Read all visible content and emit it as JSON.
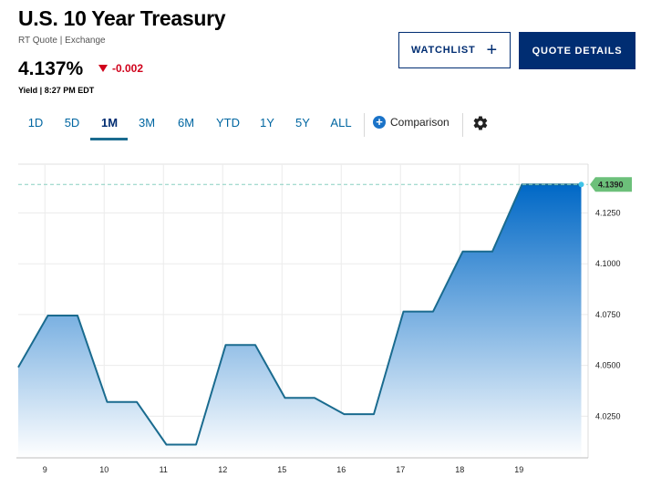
{
  "header": {
    "title": "U.S. 10 Year Treasury",
    "subtitle": "RT Quote | Exchange",
    "price": "4.137%",
    "change": "-0.002",
    "timestamp": "Yield | 8:27 PM EDT"
  },
  "buttons": {
    "watchlist": "WATCHLIST",
    "quote_details": "QUOTE DETAILS"
  },
  "tabs": [
    "1D",
    "5D",
    "1M",
    "3M",
    "6M",
    "YTD",
    "1Y",
    "5Y",
    "ALL"
  ],
  "active_tab": "1M",
  "comparison_label": "Comparison",
  "colors": {
    "brand_navy": "#002d72",
    "tab_blue": "#0066a1",
    "down_red": "#d0021b",
    "line": "#1a6b8f",
    "current_flag": "#6cc07a"
  },
  "chart_data": {
    "type": "area",
    "x_labels": [
      "9",
      "10",
      "11",
      "12",
      "15",
      "16",
      "17",
      "18",
      "19"
    ],
    "points": [
      {
        "x": 0,
        "y": 4.049
      },
      {
        "x": 0.5,
        "y": 4.0745
      },
      {
        "x": 1.0,
        "y": 4.0745
      },
      {
        "x": 1.5,
        "y": 4.032
      },
      {
        "x": 2.0,
        "y": 4.032
      },
      {
        "x": 2.5,
        "y": 4.011
      },
      {
        "x": 3.0,
        "y": 4.011
      },
      {
        "x": 3.5,
        "y": 4.06
      },
      {
        "x": 4.0,
        "y": 4.06
      },
      {
        "x": 4.5,
        "y": 4.034
      },
      {
        "x": 5.0,
        "y": 4.034
      },
      {
        "x": 5.5,
        "y": 4.026
      },
      {
        "x": 6.0,
        "y": 4.026
      },
      {
        "x": 6.5,
        "y": 4.0765
      },
      {
        "x": 7.0,
        "y": 4.0765
      },
      {
        "x": 7.5,
        "y": 4.106
      },
      {
        "x": 8.0,
        "y": 4.106
      },
      {
        "x": 8.5,
        "y": 4.139
      },
      {
        "x": 9.5,
        "y": 4.139
      }
    ],
    "y_ticks": [
      "4.0250",
      "4.0500",
      "4.0750",
      "4.1000",
      "4.1250"
    ],
    "current_value": "4.1390",
    "ylim": [
      4.0045,
      4.149
    ],
    "grid": true
  }
}
